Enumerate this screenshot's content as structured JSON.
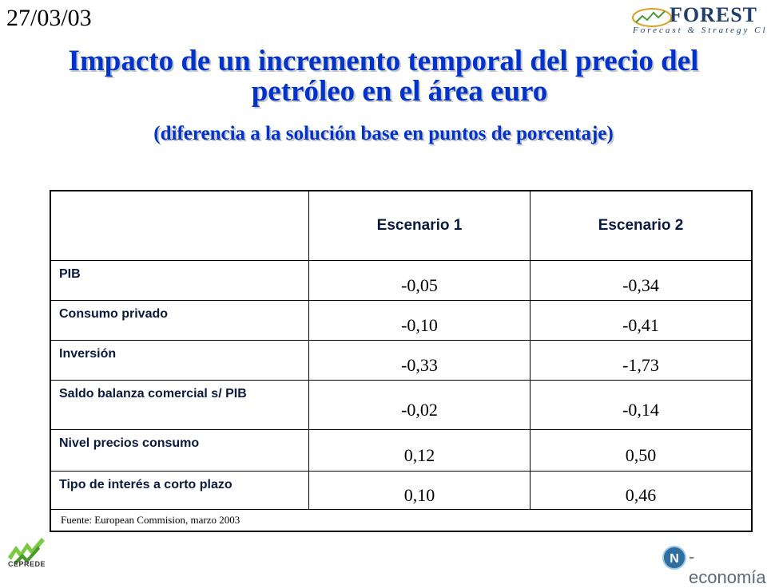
{
  "header": {
    "date": "27/03/03",
    "logo_forest": "FOREST",
    "logo_forest_sub": "Forecast & Strategy Club"
  },
  "title": {
    "line1": "Impacto de un incremento temporal del precio del",
    "line2": "petróleo en el área euro",
    "subtitle": "(diferencia a la solución base en puntos de porcentaje)"
  },
  "table": {
    "columns": [
      "Escenario 1",
      "Escenario 2"
    ],
    "rows": [
      {
        "label": "PIB",
        "values": [
          "-0,05",
          "-0,34"
        ]
      },
      {
        "label": "Consumo privado",
        "values": [
          "-0,10",
          "-0,41"
        ]
      },
      {
        "label": "Inversión",
        "values": [
          "-0,33",
          "-1,73"
        ]
      },
      {
        "label": "Saldo balanza comercial s/ PIB",
        "values": [
          "-0,02",
          "-0,14"
        ]
      },
      {
        "label": "Nivel precios consumo",
        "values": [
          "0,12",
          "0,50"
        ]
      },
      {
        "label": "Tipo de interés a corto plazo",
        "values": [
          "0,10",
          "0,46"
        ]
      }
    ],
    "source": "Fuente: European Commision, marzo 2003"
  },
  "footer": {
    "logo_cepre": "CEPREDE",
    "logo_neco": "-economía"
  },
  "colors": {
    "title": "#0033cc",
    "forest_logo": "#1f3f6a",
    "cepre_logo": "#7ac943"
  }
}
